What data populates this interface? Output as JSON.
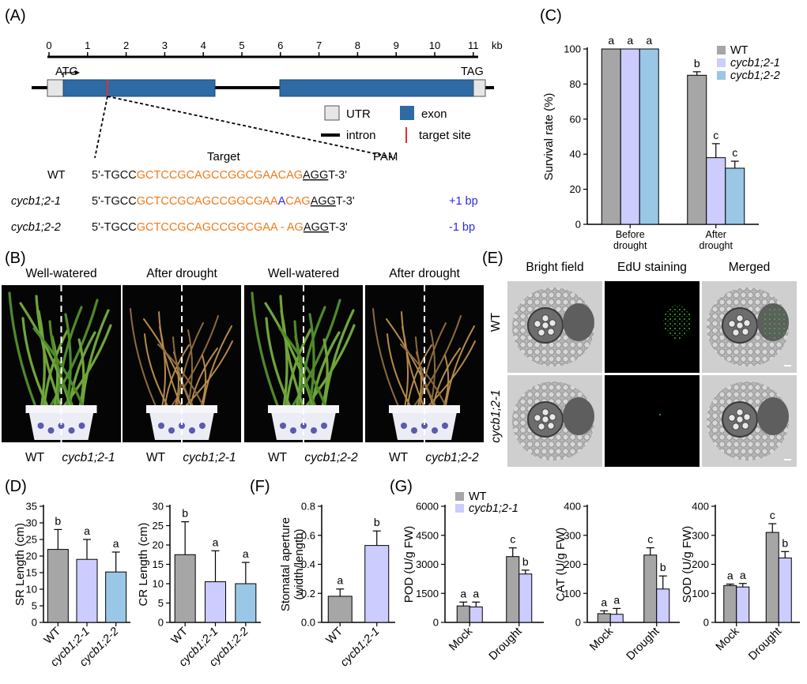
{
  "panels": {
    "A": "(A)",
    "B": "(B)",
    "C": "(C)",
    "D": "(D)",
    "E": "(E)",
    "F": "(F)",
    "G": "(G)"
  },
  "gene_model": {
    "scale_ticks": [
      "0",
      "1",
      "2",
      "3",
      "4",
      "5",
      "6",
      "7",
      "8",
      "9",
      "10",
      "11"
    ],
    "scale_unit": "kb",
    "atg": "ATG",
    "tag": "TAG",
    "legend": {
      "utr": "UTR",
      "exon": "exon",
      "intron": "intron",
      "target": "target site"
    },
    "colors": {
      "exon": "#2e6aa3",
      "utr": "#e6e6e6",
      "target": "#e0312b"
    },
    "target_label": "Target",
    "pam_label": "PAM",
    "sequences": [
      {
        "name": "WT",
        "italic": false,
        "prefix": "5'-TGCC",
        "orange": "GCTCCGCAGCCGGCGAACAG",
        "insert": "",
        "orange2": "",
        "pam": "AGG",
        "suffix": "T-3'",
        "note": ""
      },
      {
        "name": "cycb1;2-1",
        "italic": true,
        "prefix": "5'-TGCC",
        "orange": "GCTCCGCAGCCGGCGAA",
        "insert": "A",
        "orange2": "CAG",
        "pam": "AGG",
        "suffix": "T-3'",
        "note": "+1 bp"
      },
      {
        "name": "cycb1;2-2",
        "italic": true,
        "prefix": "5'-TGCC",
        "orange": "GCTCCGCAGCCGGCGAA - AG",
        "insert": "",
        "orange2": "",
        "pam": "AGG",
        "suffix": "T-3'",
        "note": "-1 bp"
      }
    ]
  },
  "photos_B": {
    "headers": [
      "Well-watered",
      "After drought",
      "Well-watered",
      "After drought"
    ],
    "labels": [
      {
        "left": "WT",
        "right": "cycb1;2-1"
      },
      {
        "left": "WT",
        "right": "cycb1;2-1"
      },
      {
        "left": "WT",
        "right": "cycb1;2-2"
      },
      {
        "left": "WT",
        "right": "cycb1;2-2"
      }
    ]
  },
  "photos_E": {
    "headers": [
      "Bright field",
      "EdU staining",
      "Merged"
    ],
    "rows": [
      "WT",
      "cycb1;2-1"
    ]
  },
  "chart_data": [
    {
      "panel": "C",
      "type": "bar",
      "categories": [
        "Before drought",
        "After drought"
      ],
      "ylabel": "Survival rate (%)",
      "ylim": [
        0,
        100
      ],
      "yticks": [
        0,
        20,
        40,
        60,
        80,
        100
      ],
      "legend_position": "top-right",
      "series": [
        {
          "name": "WT",
          "color": "#a6a6a6",
          "values": [
            100,
            85
          ],
          "errors": [
            0,
            2
          ],
          "letters": [
            "a",
            "b"
          ]
        },
        {
          "name": "cycb1;2-1",
          "color": "#ccccff",
          "values": [
            100,
            38
          ],
          "errors": [
            0,
            8
          ],
          "letters": [
            "a",
            "c"
          ]
        },
        {
          "name": "cycb1;2-2",
          "color": "#9ac7e6",
          "values": [
            100,
            32
          ],
          "errors": [
            0,
            4
          ],
          "letters": [
            "a",
            "c"
          ]
        }
      ]
    },
    {
      "panel": "D1",
      "type": "bar",
      "categories": [
        "WT",
        "cycb1;2-1",
        "cycb1;2-2"
      ],
      "ylabel": "SR Length (cm)",
      "ylim": [
        0,
        35
      ],
      "yticks": [
        0,
        5,
        10,
        15,
        20,
        25,
        30,
        35
      ],
      "values": [
        22,
        19,
        15.2
      ],
      "errors": [
        6,
        6,
        6
      ],
      "letters": [
        "b",
        "a",
        "a"
      ],
      "colors": [
        "#a6a6a6",
        "#ccccff",
        "#9ac7e6"
      ]
    },
    {
      "panel": "D2",
      "type": "bar",
      "categories": [
        "WT",
        "cycb1;2-1",
        "cycb1;2-2"
      ],
      "ylabel": "CR Length (cm)",
      "ylim": [
        0,
        30
      ],
      "yticks": [
        0,
        5,
        10,
        15,
        20,
        25,
        30
      ],
      "values": [
        17.5,
        10.5,
        10
      ],
      "errors": [
        8.5,
        8,
        5.5
      ],
      "letters": [
        "b",
        "a",
        "a"
      ],
      "colors": [
        "#a6a6a6",
        "#ccccff",
        "#9ac7e6"
      ]
    },
    {
      "panel": "F",
      "type": "bar",
      "categories": [
        "WT",
        "cycb1;2-1"
      ],
      "ylabel": "Stomatal aperture (width/length)",
      "ylabel_lines": [
        "Stomatal aperture",
        "(width/length)"
      ],
      "ylim": [
        0,
        0.8
      ],
      "yticks": [
        "0.0",
        "0.2",
        "0.4",
        "0.6",
        "0.8"
      ],
      "values": [
        0.18,
        0.53
      ],
      "errors": [
        0.05,
        0.1
      ],
      "letters": [
        "a",
        "b"
      ],
      "colors": [
        "#a6a6a6",
        "#ccccff"
      ]
    },
    {
      "panel": "G1",
      "type": "bar",
      "categories": [
        "Mock",
        "Drought"
      ],
      "ylabel": "POD (U/g FW)",
      "ylim": [
        0,
        6000
      ],
      "yticks": [
        0,
        1500,
        3000,
        4500,
        6000
      ],
      "legend_position": "top-left",
      "series": [
        {
          "name": "WT",
          "color": "#a6a6a6",
          "values": [
            850,
            3400
          ],
          "errors": [
            200,
            450
          ],
          "letters": [
            "a",
            "c"
          ]
        },
        {
          "name": "cycb1;2-1",
          "color": "#ccccff",
          "values": [
            800,
            2500
          ],
          "errors": [
            250,
            200
          ],
          "letters": [
            "a",
            "b"
          ]
        }
      ]
    },
    {
      "panel": "G2",
      "type": "bar",
      "categories": [
        "Mock",
        "Drought"
      ],
      "ylabel": "CAT (U/g FW)",
      "ylim": [
        0,
        400
      ],
      "yticks": [
        0,
        100,
        200,
        300,
        400
      ],
      "series": [
        {
          "values": [
            30,
            232
          ],
          "errors": [
            10,
            25
          ],
          "letters": [
            "a",
            "c"
          ],
          "color": "#a6a6a6"
        },
        {
          "values": [
            28,
            115
          ],
          "errors": [
            20,
            45
          ],
          "letters": [
            "a",
            "b"
          ],
          "color": "#ccccff"
        }
      ]
    },
    {
      "panel": "G3",
      "type": "bar",
      "categories": [
        "Mock",
        "Drought"
      ],
      "ylabel": "SOD (U/g FW)",
      "ylim": [
        0,
        400
      ],
      "yticks": [
        0,
        100,
        200,
        300,
        400
      ],
      "series": [
        {
          "values": [
            127,
            310
          ],
          "errors": [
            5,
            30
          ],
          "letters": [
            "a",
            "c"
          ],
          "color": "#a6a6a6"
        },
        {
          "values": [
            122,
            222
          ],
          "errors": [
            12,
            22
          ],
          "letters": [
            "a",
            "b"
          ],
          "color": "#ccccff"
        }
      ]
    }
  ]
}
